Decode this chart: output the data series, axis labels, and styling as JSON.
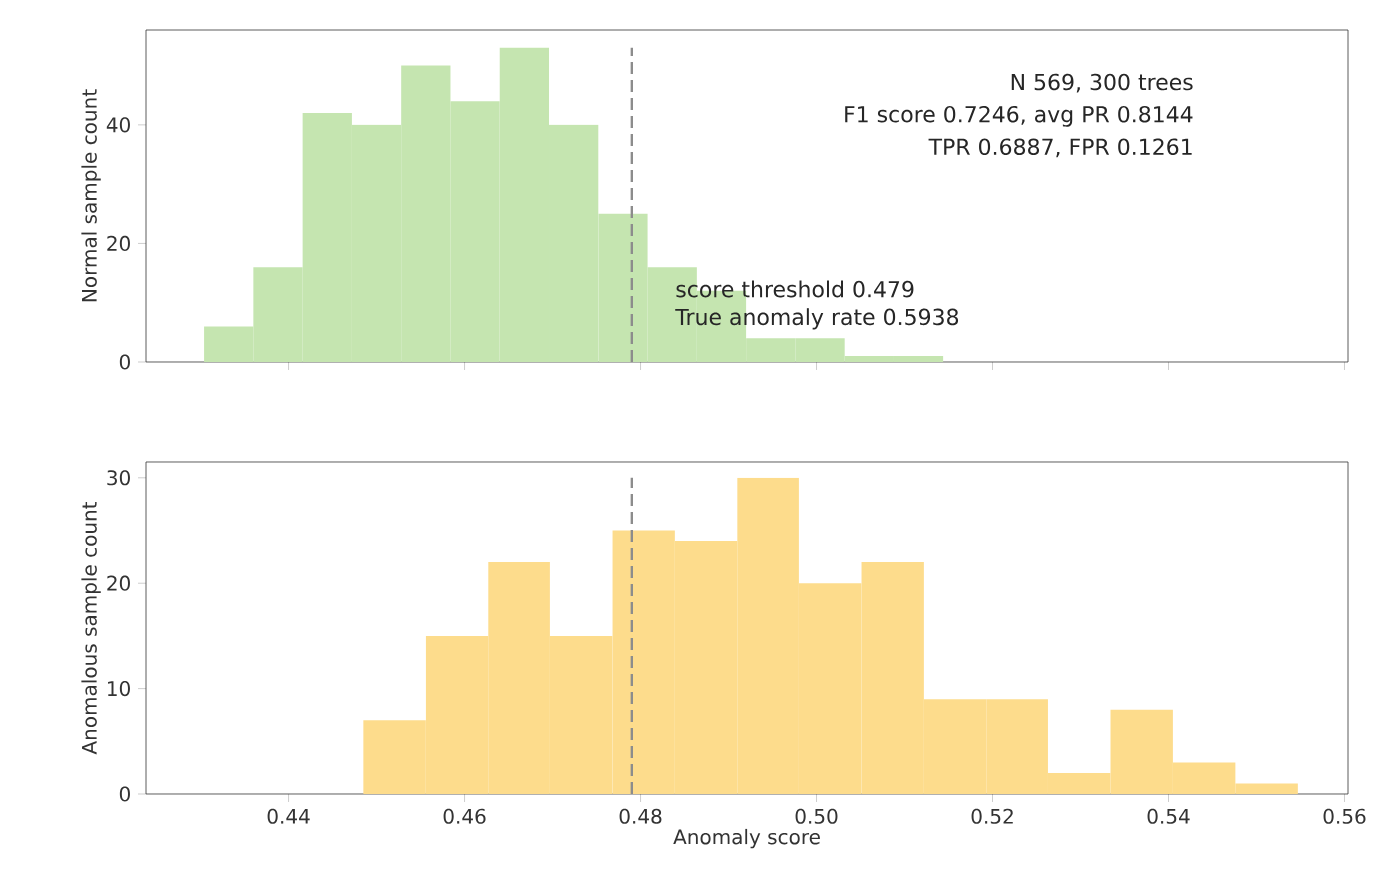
{
  "chart_data": [
    {
      "type": "histogram",
      "color": "#c5e5b0",
      "ylabel": "Normal sample count",
      "bins": [
        0.4304,
        0.436,
        0.4416,
        0.4472,
        0.4528,
        0.4584,
        0.464,
        0.4696,
        0.4752,
        0.4808,
        0.4864,
        0.492,
        0.4976,
        0.5032,
        0.5088,
        0.5144
      ],
      "values": [
        6,
        16,
        42,
        40,
        50,
        44,
        53,
        40,
        25,
        16,
        12,
        4,
        4,
        1,
        1
      ],
      "xlim": [
        0.4238,
        0.5604
      ],
      "ylim": [
        0,
        56
      ],
      "xticks": [
        0.44,
        0.46,
        0.48,
        0.5,
        0.52,
        0.54,
        0.56
      ],
      "yticks": [
        0,
        20,
        40
      ],
      "tick_labels": "y",
      "ref_lines": [
        {
          "axis": "x",
          "value": 0.479,
          "color": "#8c8c8c",
          "line_style": "dashed"
        }
      ],
      "annotations": [
        "N 569, 300 trees",
        "F1 score 0.7246, avg PR 0.8144",
        "TPR 0.6887, FPR 0.1261",
        "score threshold 0.479",
        "True anomaly rate 0.5938"
      ]
    },
    {
      "type": "histogram",
      "color": "#fddc8c",
      "ylabel": "Anomalous sample count",
      "xlabel": "Anomaly score",
      "bins": [
        0.4485,
        0.4556,
        0.4627,
        0.4697,
        0.4768,
        0.4839,
        0.491,
        0.498,
        0.5051,
        0.5122,
        0.5193,
        0.5263,
        0.5334,
        0.5405,
        0.5476,
        0.5547
      ],
      "values": [
        7,
        15,
        22,
        15,
        25,
        24,
        30,
        20,
        22,
        9,
        9,
        2,
        8,
        3,
        1
      ],
      "xlim": [
        0.4238,
        0.5604
      ],
      "ylim": [
        0,
        31.5
      ],
      "xticks": [
        0.44,
        0.46,
        0.48,
        {
          "value": 0.5,
          "label": "0.50"
        },
        0.52,
        0.54,
        0.56
      ],
      "yticks": [
        0,
        10,
        20,
        30
      ],
      "ref_lines": [
        {
          "axis": "x",
          "value": 0.479,
          "color": "#8c8c8c",
          "line_style": "dashed"
        }
      ]
    }
  ]
}
